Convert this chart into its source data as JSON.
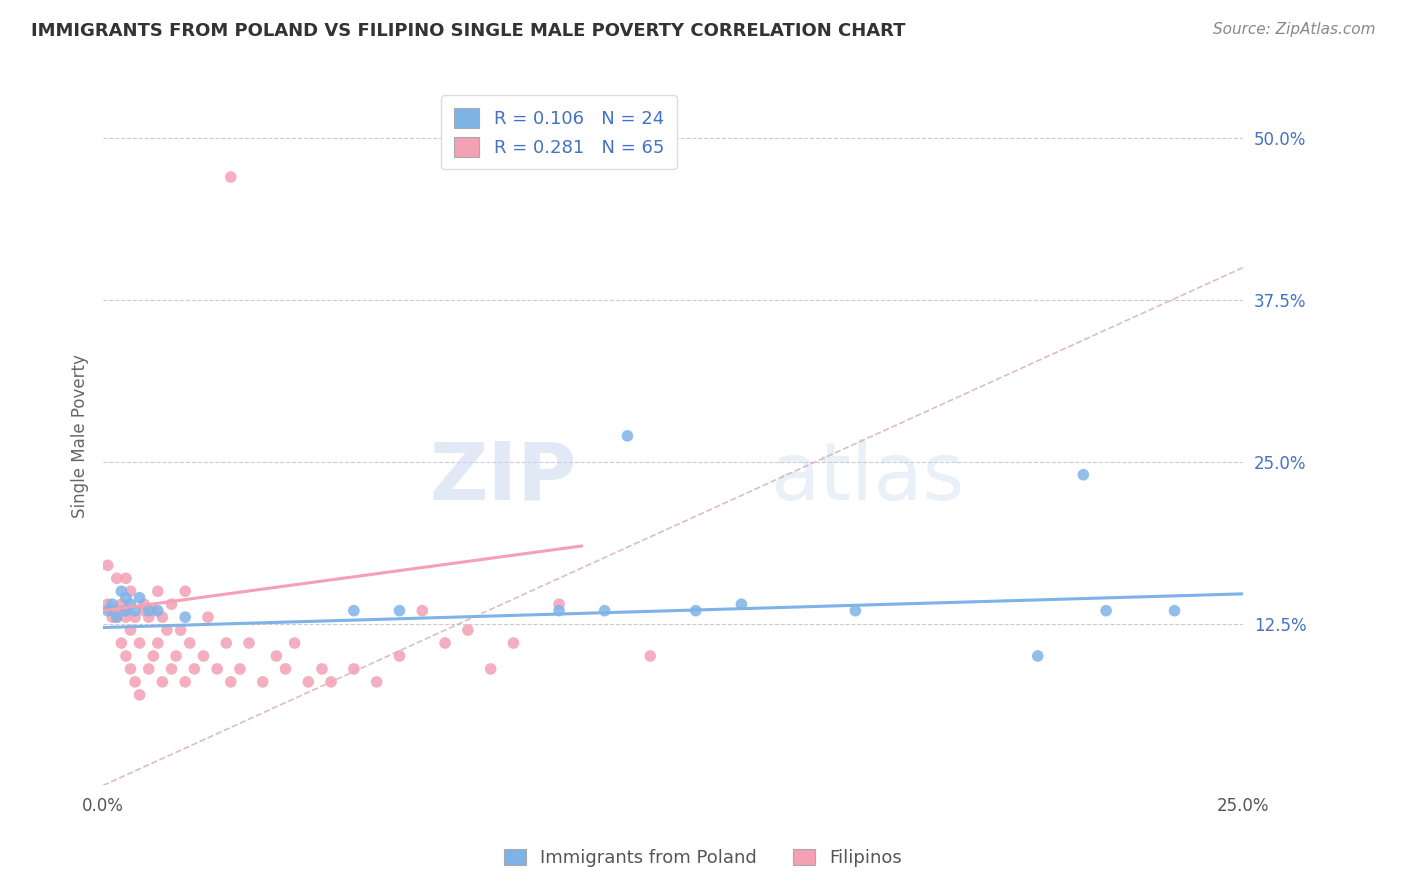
{
  "title": "IMMIGRANTS FROM POLAND VS FILIPINO SINGLE MALE POVERTY CORRELATION CHART",
  "source_text": "Source: ZipAtlas.com",
  "ylabel": "Single Male Poverty",
  "xlim": [
    0.0,
    0.25
  ],
  "ylim": [
    0.0,
    0.54
  ],
  "ytick_positions": [
    0.0,
    0.125,
    0.25,
    0.375,
    0.5
  ],
  "ytick_labels": [
    "",
    "12.5%",
    "25.0%",
    "37.5%",
    "50.0%"
  ],
  "legend_R1": "R = 0.106",
  "legend_N1": "N = 24",
  "legend_R2": "R = 0.281",
  "legend_N2": "N = 65",
  "color_blue": "#7EB3E8",
  "color_pink": "#F4A0B5",
  "color_title": "#333333",
  "color_legend_text": "#4472C4",
  "watermark_zip": "ZIP",
  "watermark_atlas": "atlas",
  "blue_scatter_x": [
    0.001,
    0.002,
    0.003,
    0.004,
    0.005,
    0.005,
    0.006,
    0.007,
    0.008,
    0.01,
    0.012,
    0.018,
    0.055,
    0.065,
    0.1,
    0.11,
    0.13,
    0.14,
    0.165,
    0.205,
    0.215,
    0.22,
    0.235,
    0.115
  ],
  "blue_scatter_y": [
    0.135,
    0.14,
    0.13,
    0.15,
    0.135,
    0.145,
    0.14,
    0.135,
    0.145,
    0.135,
    0.135,
    0.13,
    0.135,
    0.135,
    0.135,
    0.135,
    0.135,
    0.14,
    0.135,
    0.1,
    0.24,
    0.135,
    0.135,
    0.27
  ],
  "pink_scatter_x": [
    0.001,
    0.001,
    0.002,
    0.002,
    0.003,
    0.003,
    0.003,
    0.004,
    0.004,
    0.004,
    0.005,
    0.005,
    0.005,
    0.005,
    0.006,
    0.006,
    0.006,
    0.007,
    0.007,
    0.008,
    0.008,
    0.009,
    0.009,
    0.01,
    0.01,
    0.011,
    0.011,
    0.012,
    0.012,
    0.013,
    0.013,
    0.014,
    0.015,
    0.015,
    0.016,
    0.017,
    0.018,
    0.018,
    0.019,
    0.02,
    0.022,
    0.023,
    0.025,
    0.027,
    0.028,
    0.03,
    0.032,
    0.035,
    0.038,
    0.04,
    0.042,
    0.045,
    0.048,
    0.05,
    0.055,
    0.06,
    0.065,
    0.07,
    0.075,
    0.08,
    0.085,
    0.09,
    0.1,
    0.12,
    0.028
  ],
  "pink_scatter_y": [
    0.14,
    0.17,
    0.13,
    0.135,
    0.13,
    0.16,
    0.135,
    0.11,
    0.14,
    0.135,
    0.1,
    0.13,
    0.16,
    0.135,
    0.09,
    0.12,
    0.15,
    0.08,
    0.13,
    0.07,
    0.11,
    0.14,
    0.135,
    0.09,
    0.13,
    0.1,
    0.135,
    0.11,
    0.15,
    0.08,
    0.13,
    0.12,
    0.09,
    0.14,
    0.1,
    0.12,
    0.08,
    0.15,
    0.11,
    0.09,
    0.1,
    0.13,
    0.09,
    0.11,
    0.08,
    0.09,
    0.11,
    0.08,
    0.1,
    0.09,
    0.11,
    0.08,
    0.09,
    0.08,
    0.09,
    0.08,
    0.1,
    0.135,
    0.11,
    0.12,
    0.09,
    0.11,
    0.14,
    0.1,
    0.47
  ],
  "blue_trend_x": [
    0.0,
    0.25
  ],
  "blue_trend_y": [
    0.122,
    0.148
  ],
  "pink_trend_x": [
    0.0,
    0.105
  ],
  "pink_trend_y": [
    0.135,
    0.185
  ],
  "diag_trend_x": [
    0.0,
    0.25
  ],
  "diag_trend_y": [
    0.0,
    0.4
  ]
}
